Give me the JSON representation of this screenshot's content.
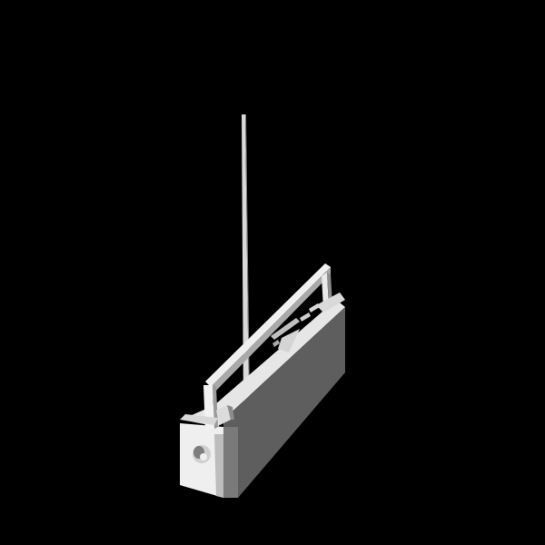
{
  "scene": {
    "background_color": "#000000",
    "subject": "3d-render-portable-radio",
    "colors": {
      "face_light": "#ebebeb",
      "face_mid": "#cfcfcf",
      "face_dark": "#6f6f6f",
      "face_darker": "#5a5a5a",
      "edge": "#8c8c8c"
    }
  }
}
